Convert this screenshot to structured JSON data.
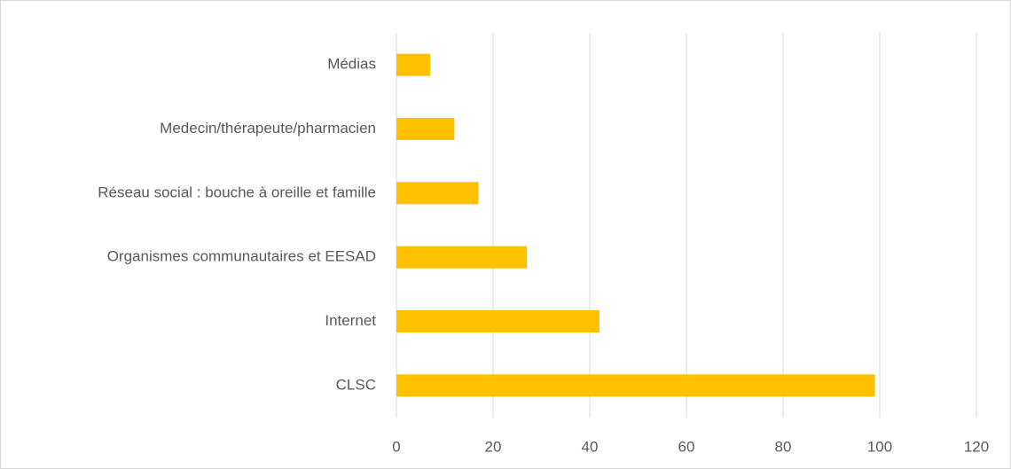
{
  "chart_data": {
    "type": "bar",
    "orientation": "horizontal",
    "categories": [
      "Médias",
      "Medecin/thérapeute/pharmacien",
      "Réseau social : bouche à oreille et famille",
      "Organismes communautaires et EESAD",
      "Internet",
      "CLSC"
    ],
    "values": [
      7,
      12,
      17,
      27,
      42,
      99
    ],
    "color": "#ffc000",
    "xlim": [
      0,
      120
    ],
    "xticks": [
      0,
      20,
      40,
      60,
      80,
      100,
      120
    ],
    "grid": true
  }
}
